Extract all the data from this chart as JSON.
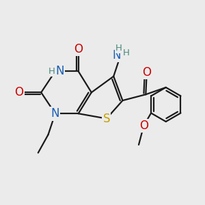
{
  "background_color": "#ebebeb",
  "bond_color": "#1a1a1a",
  "bond_width": 1.6,
  "atom_colors": {
    "N": "#1a5fb4",
    "O": "#cc0000",
    "S": "#c4a000",
    "H": "#4a8a7a",
    "C": "#1a1a1a"
  },
  "font_size": 12,
  "font_size_small": 9.5
}
